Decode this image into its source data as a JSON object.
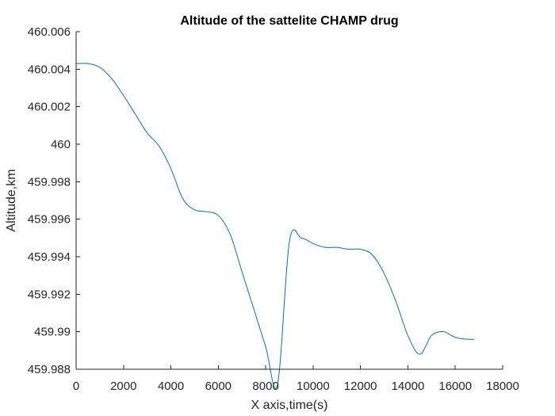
{
  "chart_data": {
    "type": "line",
    "title": "Altitude of the sattelite CHAMP drug",
    "xlabel": "X axis,time(s)",
    "ylabel": "Altitude,km",
    "xlim": [
      0,
      18000
    ],
    "ylim": [
      459.988,
      460.006
    ],
    "x_ticks": [
      "0",
      "2000",
      "4000",
      "6000",
      "8000",
      "10000",
      "12000",
      "14000",
      "16000",
      "18000"
    ],
    "y_ticks": [
      "459.988",
      "459.99",
      "459.992",
      "459.994",
      "459.996",
      "459.998",
      "460",
      "460.002",
      "460.004",
      "460.006"
    ],
    "grid": false,
    "series_color": "#0072BD",
    "series": [
      {
        "x": [
          0,
          500,
          1000,
          1500,
          2000,
          2500,
          3000,
          3500,
          4000,
          4500,
          5000,
          5500,
          6000,
          6500,
          7000,
          7500,
          8000,
          8500,
          9000,
          9500,
          10000,
          10500,
          11000,
          11500,
          12000,
          12500,
          13000,
          13500,
          14000,
          14500,
          15000,
          15500,
          16000,
          16500,
          16800
        ],
        "y": [
          460.0043,
          460.0043,
          460.0041,
          460.0035,
          460.0026,
          460.0016,
          460.0006,
          459.9999,
          459.9987,
          459.9971,
          459.9965,
          459.9964,
          459.9962,
          459.9952,
          459.9932,
          459.9912,
          459.9892,
          459.9872,
          459.9948,
          459.995,
          459.9947,
          459.9945,
          459.9945,
          459.9944,
          459.9944,
          459.9941,
          459.9931,
          459.9916,
          459.9898,
          459.9888,
          459.9898,
          459.99,
          459.9897,
          459.9896,
          459.9896
        ]
      }
    ]
  }
}
